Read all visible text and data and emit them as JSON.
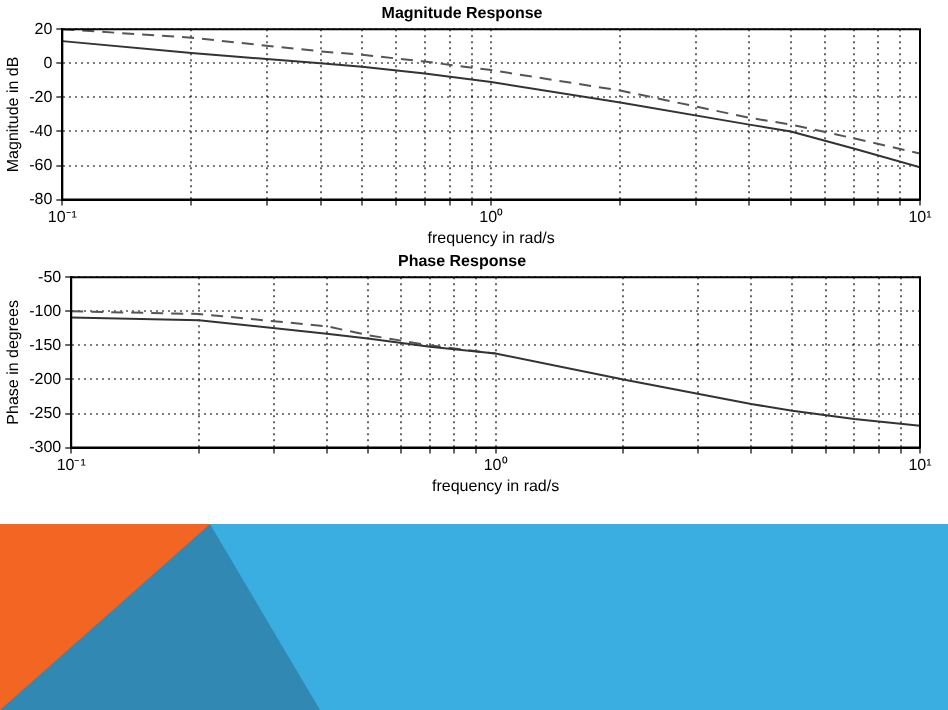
{
  "chart_data": [
    {
      "type": "line",
      "title": "Magnitude Response",
      "xlabel": "frequency in rad/s",
      "ylabel": "Magnitude in dB",
      "log": "x",
      "x": [
        0.1,
        0.2,
        0.4,
        0.5,
        0.7,
        1,
        2,
        4,
        5,
        7,
        10
      ],
      "series": [
        {
          "color": "#333333",
          "line_style": "solid",
          "values": [
            13,
            6,
            0,
            -2,
            -6,
            -11,
            -23,
            -36,
            -40,
            -50,
            -61
          ]
        },
        {
          "color": "#555555",
          "line_style": "dashed",
          "values": [
            20,
            15,
            7,
            5,
            1,
            -4,
            -16,
            -32,
            -36,
            -44,
            -53
          ]
        }
      ],
      "xlim": [
        0.1,
        10
      ],
      "ylim": [
        -80,
        20
      ],
      "xticks": [
        {
          "value": 0.1,
          "label": "10⁻¹"
        },
        {
          "value": 0.2,
          "label": null
        },
        {
          "value": 0.3,
          "label": null
        },
        {
          "value": 0.4,
          "label": null
        },
        {
          "value": 0.5,
          "label": null
        },
        {
          "value": 0.6,
          "label": null
        },
        {
          "value": 0.7,
          "label": null
        },
        {
          "value": 0.8,
          "label": null
        },
        {
          "value": 0.9,
          "label": null
        },
        {
          "value": 1,
          "label": "10⁰"
        },
        {
          "value": 2,
          "label": null
        },
        {
          "value": 3,
          "label": null
        },
        {
          "value": 4,
          "label": null
        },
        {
          "value": 5,
          "label": null
        },
        {
          "value": 6,
          "label": null
        },
        {
          "value": 7,
          "label": null
        },
        {
          "value": 8,
          "label": null
        },
        {
          "value": 9,
          "label": null
        },
        {
          "value": 10,
          "label": "10¹"
        }
      ],
      "yticks": [
        -80,
        -60,
        -40,
        -20,
        0,
        20
      ],
      "grid": true,
      "legend": false,
      "marker": "none"
    },
    {
      "type": "line",
      "title": "Phase Response",
      "xlabel": "frequency in rad/s",
      "ylabel": "Phase in degrees",
      "log": "x",
      "x": [
        0.1,
        0.2,
        0.4,
        0.5,
        0.7,
        1,
        2,
        4,
        5,
        7,
        10
      ],
      "series": [
        {
          "color": "#333333",
          "line_style": "solid",
          "values": [
            -109,
            -113,
            -133,
            -140,
            -152,
            -162,
            -200,
            -236,
            -246,
            -258,
            -268
          ]
        },
        {
          "color": "#555555",
          "line_style": "dashed",
          "values": [
            -100,
            -104,
            -122,
            -135,
            -150,
            -162,
            null,
            null,
            null,
            null,
            null
          ]
        }
      ],
      "xlim": [
        0.1,
        10
      ],
      "ylim": [
        -300,
        -50
      ],
      "xticks": [
        {
          "value": 0.1,
          "label": "10⁻¹"
        },
        {
          "value": 0.2,
          "label": null
        },
        {
          "value": 0.3,
          "label": null
        },
        {
          "value": 0.4,
          "label": null
        },
        {
          "value": 0.5,
          "label": null
        },
        {
          "value": 0.6,
          "label": null
        },
        {
          "value": 0.7,
          "label": null
        },
        {
          "value": 0.8,
          "label": null
        },
        {
          "value": 0.9,
          "label": null
        },
        {
          "value": 1,
          "label": "10⁰"
        },
        {
          "value": 2,
          "label": null
        },
        {
          "value": 3,
          "label": null
        },
        {
          "value": 4,
          "label": null
        },
        {
          "value": 5,
          "label": null
        },
        {
          "value": 6,
          "label": null
        },
        {
          "value": 7,
          "label": null
        },
        {
          "value": 8,
          "label": null
        },
        {
          "value": 9,
          "label": null
        },
        {
          "value": 10,
          "label": "10¹"
        }
      ],
      "yticks": [
        -300,
        -250,
        -200,
        -150,
        -100,
        -50
      ],
      "grid": true,
      "legend": false,
      "marker": "none"
    }
  ]
}
